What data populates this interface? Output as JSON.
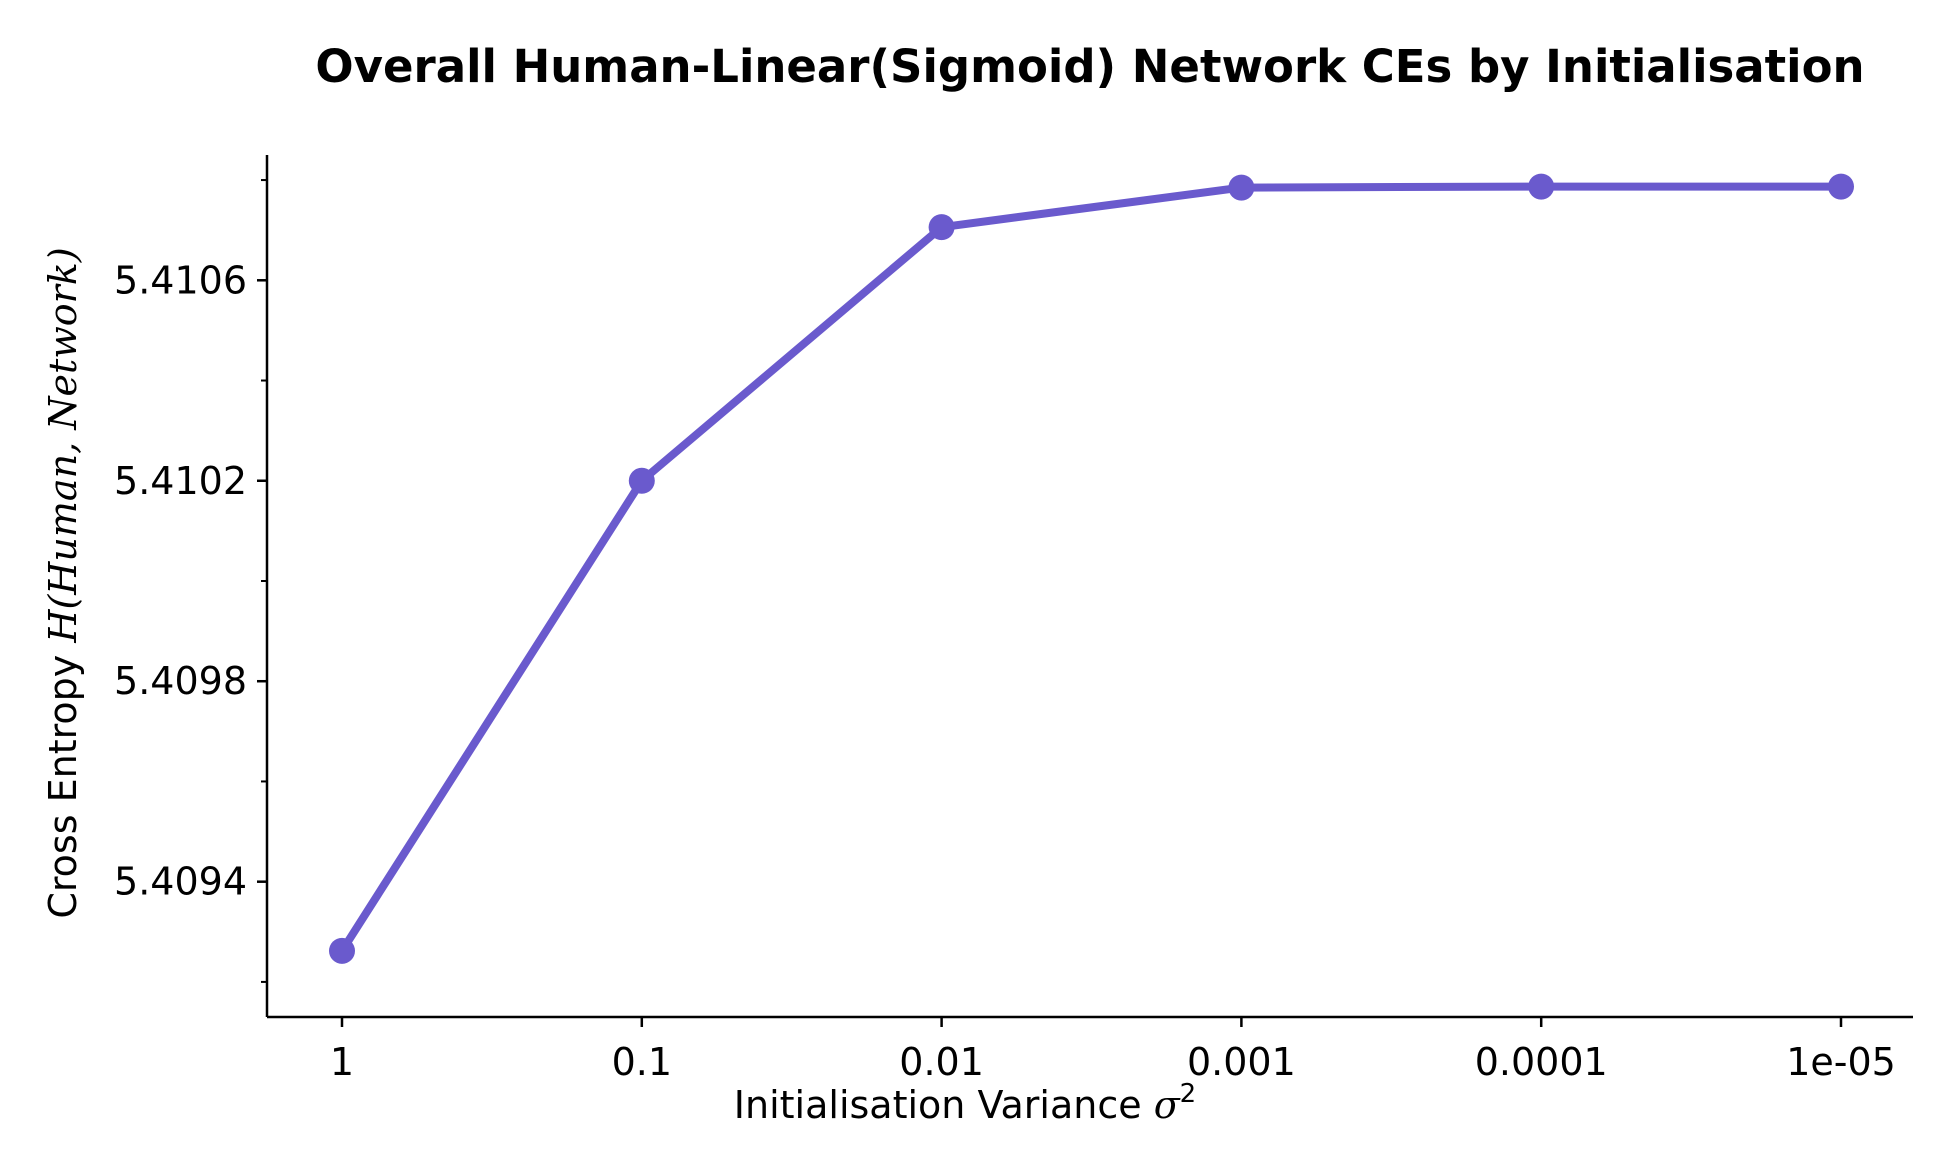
{
  "chart_data": {
    "type": "line",
    "title": "Overall Human-Linear(Sigmoid) Network CEs by Initialisation",
    "xlabel": {
      "text": "Initialisation Variance ",
      "symbol": "σ",
      "superscript": "2"
    },
    "ylabel": {
      "text": "Cross Entropy ",
      "math": "H(Human, Network)"
    },
    "categories": [
      "1",
      "0.1",
      "0.01",
      "0.001",
      "0.0001",
      "1e-05"
    ],
    "series": [
      {
        "values": [
          5.409262,
          5.4102,
          5.410706,
          5.410785,
          5.410787,
          5.410787
        ],
        "color": "#6a5acd"
      }
    ],
    "ylim": [
      5.40913,
      5.41085
    ],
    "yticks_major": [
      5.4094,
      5.4098,
      5.4102,
      5.4106
    ],
    "ytick_labels": [
      "5.4094",
      "5.4098",
      "5.4102",
      "5.4106"
    ],
    "yticks_minor": [
      5.4092,
      5.4096,
      5.41,
      5.4104,
      5.4108
    ],
    "grid": false,
    "legend": "none",
    "markers": "circle"
  }
}
